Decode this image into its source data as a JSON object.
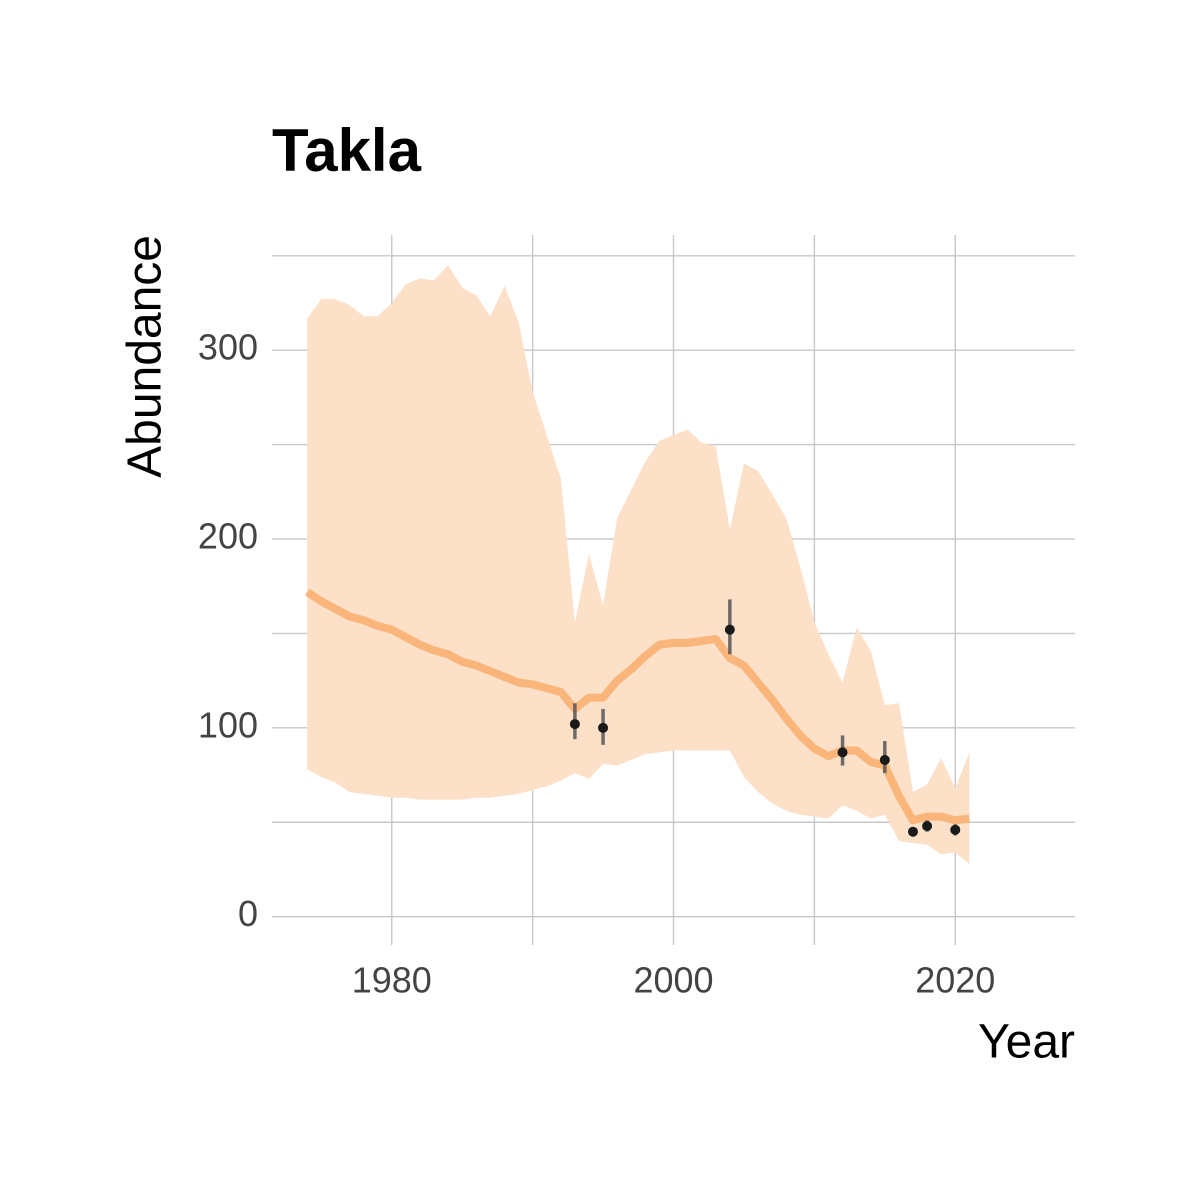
{
  "chart_data": {
    "type": "line",
    "title": "Takla",
    "x_label": "Year",
    "y_label": "Abundance",
    "xlim": [
      1971.5,
      2028.5
    ],
    "ylim": [
      -15,
      361
    ],
    "xticks": [
      1980,
      2000,
      2020
    ],
    "yticks": [
      0,
      100,
      200,
      300
    ],
    "x_minor_grid": [
      1990,
      2010
    ],
    "y_minor_grid": [
      50,
      150,
      250,
      350
    ],
    "grid": true,
    "x": [
      1974,
      1975,
      1976,
      1977,
      1978,
      1979,
      1980,
      1981,
      1982,
      1983,
      1984,
      1985,
      1986,
      1987,
      1988,
      1989,
      1990,
      1991,
      1992,
      1993,
      1994,
      1995,
      1996,
      1997,
      1998,
      1999,
      2000,
      2001,
      2002,
      2003,
      2004,
      2005,
      2006,
      2007,
      2008,
      2009,
      2010,
      2011,
      2012,
      2013,
      2014,
      2015,
      2016,
      2017,
      2018,
      2019,
      2020,
      2021
    ],
    "series": [
      {
        "color": "#f9b57a",
        "band_color": "#fce0c7",
        "values": [
          172,
          167,
          163,
          159,
          157,
          154,
          152,
          148,
          144,
          141,
          139,
          135,
          133,
          130,
          127,
          124,
          123,
          121,
          119,
          110,
          116,
          116,
          125,
          131,
          138,
          144,
          145,
          145,
          146,
          147,
          137,
          133,
          124,
          115,
          105,
          96,
          89,
          85,
          88,
          88,
          82,
          80,
          64,
          51,
          53,
          53,
          51,
          52
        ],
        "lower": [
          78,
          74,
          71,
          66,
          65,
          64,
          63,
          63,
          62,
          62,
          62,
          62,
          63,
          63,
          64,
          65,
          67,
          69,
          72,
          76,
          73,
          81,
          80,
          83,
          86,
          87,
          88,
          88,
          88,
          88,
          88,
          74,
          66,
          60,
          56,
          54,
          53,
          52,
          59,
          56,
          52,
          54,
          40,
          39,
          38,
          33,
          34,
          28
        ],
        "upper": [
          317,
          327,
          327,
          324,
          318,
          318,
          325,
          335,
          338,
          337,
          345,
          333,
          329,
          318,
          334,
          315,
          278,
          255,
          232,
          156,
          192,
          165,
          211,
          226,
          241,
          252,
          255,
          258,
          251,
          249,
          205,
          240,
          236,
          224,
          211,
          185,
          156,
          139,
          124,
          153,
          141,
          112,
          113,
          66,
          70,
          84,
          68,
          87
        ]
      }
    ],
    "points": {
      "color": "#1a1a1a",
      "error_color": "#555555",
      "x": [
        1993,
        1995,
        2004,
        2012,
        2015,
        2017,
        2018,
        2020
      ],
      "values": [
        102,
        100,
        152,
        87,
        83,
        45,
        48,
        46
      ],
      "lower": [
        94,
        91,
        139,
        80,
        76,
        43,
        45,
        43
      ],
      "upper": [
        113,
        110,
        168,
        96,
        93,
        47,
        51,
        49
      ]
    }
  }
}
